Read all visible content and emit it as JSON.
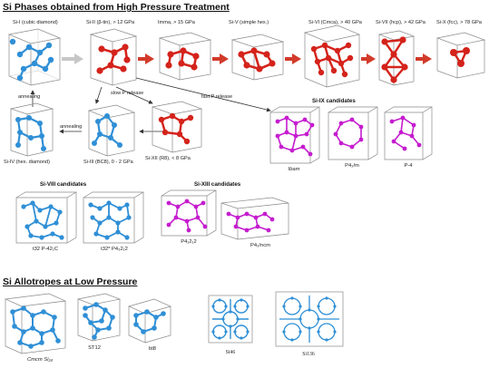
{
  "titles": {
    "high_pressure": "Si Phases obtained from High Pressure Treatment",
    "low_pressure": "Si Allotropes at Low Pressure"
  },
  "colors": {
    "red_atom": "#d4231b",
    "blue_atom": "#2f8fd6",
    "magenta_atom": "#c51ccf",
    "box_edge": "#9a9a9a",
    "arrow": "#333333",
    "bond_arrow_gray": "#bdbdbd",
    "arrow_red": "#d23a2a"
  },
  "phases": [
    {
      "id": "si1",
      "label": "Si-I (cubic diamond)",
      "color": "blue"
    },
    {
      "id": "si2",
      "label": "Si-II (β-tin), > 12 GPa",
      "color": "red"
    },
    {
      "id": "imma",
      "label": "Imma, > 15 GPa",
      "color": "red"
    },
    {
      "id": "si5",
      "label": "Si-V (simple hex.)",
      "color": "red"
    },
    {
      "id": "si6",
      "label": "Si-VI (Cmca), > 40 GPa",
      "color": "red"
    },
    {
      "id": "si7",
      "label": "Si-VII (hcp), > 42 GPa",
      "color": "red"
    },
    {
      "id": "si10",
      "label": "Si-X (fcc), > 78 GPa",
      "color": "red"
    }
  ],
  "row2": {
    "si4": "Si-IV (hex. diamond)",
    "si3": "Si-III (BC8), 0 - 2 GPa",
    "si12": "Si-XII (R8), < 8 GPa",
    "annealing_up": "annealing",
    "annealing_left": "annealing",
    "slow_release": "slow P release",
    "fast_release": "fast P release"
  },
  "si9": {
    "title": "Si-IX candidates",
    "items": [
      "Ibam",
      "P4₂/m",
      "P-4"
    ]
  },
  "si8": {
    "title": "Si-VIII candidates",
    "items": [
      "t32 P-42₁C",
      "t32* P4₃2₁2"
    ]
  },
  "si13": {
    "title": "Si-XIII candidates",
    "items": [
      "P4₁2₁2",
      "P4₂/ncm"
    ]
  },
  "low": {
    "items": [
      "Cmcm Si₂₄",
      "ST12",
      "bt8",
      "Si46",
      "Si136"
    ]
  }
}
